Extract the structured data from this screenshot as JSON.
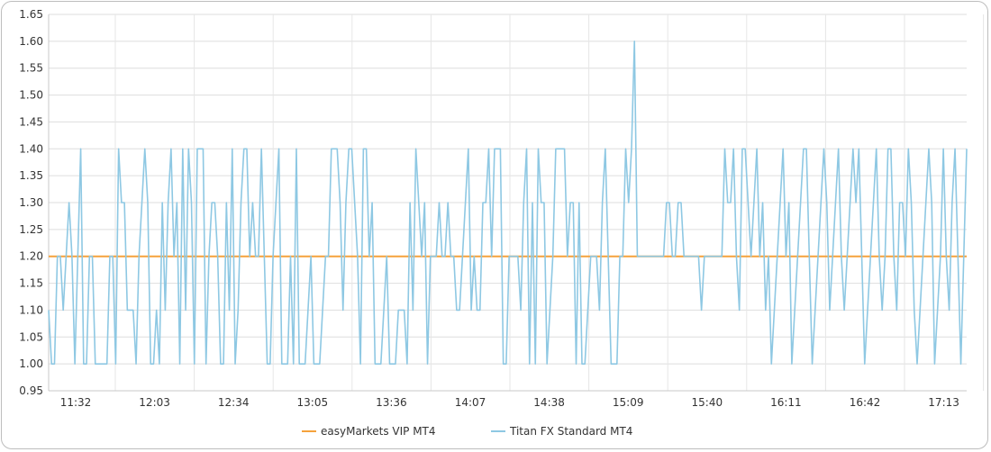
{
  "chart_data": {
    "type": "line",
    "title": "",
    "xlabel": "",
    "ylabel": "",
    "ylim": [
      0.95,
      1.65
    ],
    "y_ticks": [
      "0.95",
      "1.00",
      "1.05",
      "1.10",
      "1.15",
      "1.20",
      "1.25",
      "1.30",
      "1.35",
      "1.40",
      "1.45",
      "1.50",
      "1.55",
      "1.60",
      "1.65"
    ],
    "x_ticks": [
      "11:32",
      "12:03",
      "12:34",
      "13:05",
      "13:36",
      "14:07",
      "14:38",
      "15:09",
      "15:40",
      "16:11",
      "16:42",
      "17:13"
    ],
    "grid": true,
    "legend_position": "bottom",
    "series": [
      {
        "name": "easyMarkets VIP MT4",
        "color": "#f5a23c",
        "values": [
          1.2,
          1.2,
          1.2,
          1.2,
          1.2,
          1.2,
          1.2,
          1.2,
          1.2,
          1.2,
          1.2,
          1.2,
          1.2,
          1.2,
          1.2,
          1.2,
          1.2,
          1.2,
          1.2,
          1.2,
          1.2,
          1.2,
          1.2,
          1.2,
          1.2,
          1.2,
          1.2,
          1.2,
          1.2,
          1.2,
          1.2,
          1.2,
          1.2,
          1.2,
          1.2,
          1.2,
          1.2,
          1.2,
          1.2,
          1.2,
          1.2,
          1.2,
          1.2,
          1.2,
          1.2,
          1.2,
          1.2,
          1.2,
          1.2,
          1.2,
          1.2,
          1.2,
          1.2,
          1.2,
          1.2,
          1.2,
          1.2,
          1.2,
          1.2,
          1.2,
          1.2,
          1.2,
          1.2,
          1.2,
          1.2,
          1.2,
          1.2,
          1.2,
          1.2,
          1.2,
          1.2,
          1.2,
          1.2,
          1.2,
          1.2,
          1.2,
          1.2,
          1.2,
          1.2,
          1.2,
          1.2,
          1.2,
          1.2,
          1.2,
          1.2,
          1.2,
          1.2,
          1.2,
          1.2,
          1.2,
          1.2,
          1.2,
          1.2,
          1.2,
          1.2,
          1.2,
          1.2,
          1.2,
          1.2,
          1.2,
          1.2,
          1.2,
          1.2,
          1.2,
          1.2,
          1.2,
          1.2,
          1.2,
          1.2,
          1.2,
          1.2,
          1.2,
          1.2,
          1.2,
          1.2,
          1.2,
          1.2,
          1.2,
          1.2,
          1.2,
          1.2,
          1.2,
          1.2,
          1.2,
          1.2,
          1.2,
          1.2,
          1.2,
          1.2,
          1.2,
          1.2,
          1.2,
          1.2,
          1.2,
          1.2,
          1.2,
          1.2,
          1.2,
          1.2,
          1.2,
          1.2,
          1.2,
          1.2,
          1.2,
          1.2,
          1.2,
          1.2,
          1.2,
          1.2,
          1.2,
          1.2,
          1.2,
          1.2,
          1.2,
          1.2,
          1.2,
          1.2,
          1.2,
          1.2,
          1.2,
          1.2,
          1.2,
          1.2,
          1.2,
          1.2,
          1.2,
          1.2,
          1.2,
          1.2,
          1.2,
          1.2,
          1.2,
          1.2,
          1.2,
          1.2,
          1.2,
          1.2,
          1.2,
          1.2,
          1.2,
          1.2,
          1.2,
          1.2,
          1.2,
          1.2,
          1.2,
          1.2,
          1.2,
          1.2,
          1.2,
          1.2,
          1.2,
          1.2,
          1.2,
          1.2,
          1.2,
          1.2,
          1.2,
          1.2,
          1.2,
          1.2,
          1.2,
          1.2,
          1.2,
          1.2,
          1.2,
          1.2,
          1.2,
          1.2,
          1.2,
          1.2,
          1.2,
          1.2,
          1.2,
          1.2,
          1.2,
          1.2,
          1.2,
          1.2,
          1.2,
          1.2,
          1.2,
          1.2,
          1.2,
          1.2,
          1.2,
          1.2,
          1.2,
          1.2,
          1.2,
          1.2,
          1.2,
          1.2,
          1.2,
          1.2,
          1.2,
          1.2,
          1.2,
          1.2,
          1.2,
          1.2,
          1.2,
          1.2,
          1.2,
          1.2,
          1.2,
          1.2,
          1.2,
          1.2,
          1.2,
          1.2,
          1.2,
          1.2,
          1.2,
          1.2,
          1.2,
          1.2,
          1.2,
          1.2,
          1.2,
          1.2,
          1.2,
          1.2,
          1.2,
          1.2,
          1.2,
          1.2,
          1.2,
          1.2,
          1.2,
          1.2,
          1.2,
          1.2,
          1.2,
          1.2,
          1.2,
          1.2,
          1.2,
          1.2,
          1.2,
          1.2,
          1.2,
          1.2,
          1.2,
          1.2,
          1.2,
          1.2,
          1.2,
          1.2,
          1.2,
          1.2,
          1.2,
          1.2,
          1.2,
          1.2,
          1.2,
          1.2,
          1.2,
          1.2,
          1.2,
          1.2,
          1.2,
          1.2,
          1.2,
          1.2,
          1.2,
          1.2,
          1.2,
          1.2,
          1.2,
          1.2,
          1.2,
          1.2,
          1.2,
          1.2,
          1.2,
          1.2,
          1.2,
          1.2,
          1.2,
          1.2,
          1.2,
          1.2,
          1.2,
          1.2,
          1.2
        ]
      },
      {
        "name": "Titan FX Standard MT4",
        "color": "#8ec8e3",
        "values": [
          1.1,
          1.0,
          1.0,
          1.2,
          1.2,
          1.1,
          1.2,
          1.3,
          1.2,
          1.0,
          1.2,
          1.4,
          1.0,
          1.0,
          1.2,
          1.2,
          1.0,
          1.0,
          1.0,
          1.0,
          1.0,
          1.2,
          1.2,
          1.0,
          1.4,
          1.3,
          1.3,
          1.1,
          1.1,
          1.1,
          1.0,
          1.2,
          1.3,
          1.4,
          1.3,
          1.0,
          1.0,
          1.1,
          1.0,
          1.3,
          1.1,
          1.3,
          1.4,
          1.2,
          1.3,
          1.0,
          1.4,
          1.1,
          1.4,
          1.3,
          1.0,
          1.4,
          1.4,
          1.4,
          1.0,
          1.2,
          1.3,
          1.3,
          1.2,
          1.0,
          1.0,
          1.3,
          1.1,
          1.4,
          1.0,
          1.1,
          1.3,
          1.4,
          1.4,
          1.2,
          1.3,
          1.2,
          1.2,
          1.4,
          1.2,
          1.0,
          1.0,
          1.2,
          1.3,
          1.4,
          1.0,
          1.0,
          1.0,
          1.2,
          1.0,
          1.4,
          1.0,
          1.0,
          1.0,
          1.1,
          1.2,
          1.0,
          1.0,
          1.0,
          1.1,
          1.2,
          1.2,
          1.4,
          1.4,
          1.4,
          1.3,
          1.1,
          1.3,
          1.4,
          1.4,
          1.3,
          1.2,
          1.0,
          1.4,
          1.4,
          1.2,
          1.3,
          1.0,
          1.0,
          1.0,
          1.1,
          1.2,
          1.0,
          1.0,
          1.0,
          1.1,
          1.1,
          1.1,
          1.0,
          1.3,
          1.1,
          1.4,
          1.3,
          1.2,
          1.3,
          1.0,
          1.2,
          1.2,
          1.2,
          1.3,
          1.2,
          1.2,
          1.3,
          1.2,
          1.2,
          1.1,
          1.1,
          1.2,
          1.3,
          1.4,
          1.1,
          1.2,
          1.1,
          1.1,
          1.3,
          1.3,
          1.4,
          1.2,
          1.4,
          1.4,
          1.4,
          1.0,
          1.0,
          1.2,
          1.2,
          1.2,
          1.2,
          1.1,
          1.3,
          1.4,
          1.0,
          1.3,
          1.0,
          1.4,
          1.3,
          1.3,
          1.0,
          1.1,
          1.2,
          1.4,
          1.4,
          1.4,
          1.4,
          1.2,
          1.3,
          1.3,
          1.0,
          1.3,
          1.0,
          1.0,
          1.1,
          1.2,
          1.2,
          1.2,
          1.1,
          1.3,
          1.4,
          1.2,
          1.0,
          1.0,
          1.0,
          1.2,
          1.2,
          1.4,
          1.3,
          1.4,
          1.6,
          1.2,
          1.2,
          1.2,
          1.2,
          1.2,
          1.2,
          1.2,
          1.2,
          1.2,
          1.2,
          1.3,
          1.3,
          1.2,
          1.2,
          1.3,
          1.3,
          1.2,
          1.2,
          1.2,
          1.2,
          1.2,
          1.2,
          1.1,
          1.2,
          1.2,
          1.2,
          1.2,
          1.2,
          1.2,
          1.2,
          1.4,
          1.3,
          1.3,
          1.4,
          1.2,
          1.1,
          1.4,
          1.4,
          1.3,
          1.2,
          1.3,
          1.4,
          1.2,
          1.3,
          1.1,
          1.2,
          1.0,
          1.1,
          1.2,
          1.3,
          1.4,
          1.2,
          1.3,
          1.0,
          1.1,
          1.2,
          1.3,
          1.4,
          1.4,
          1.2,
          1.0,
          1.1,
          1.2,
          1.3,
          1.4,
          1.3,
          1.1,
          1.2,
          1.3,
          1.4,
          1.2,
          1.1,
          1.2,
          1.3,
          1.4,
          1.3,
          1.4,
          1.2,
          1.0,
          1.1,
          1.2,
          1.3,
          1.4,
          1.2,
          1.1,
          1.2,
          1.4,
          1.4,
          1.2,
          1.1,
          1.3,
          1.3,
          1.2,
          1.4,
          1.3,
          1.1,
          1.0,
          1.1,
          1.2,
          1.3,
          1.4,
          1.3,
          1.0,
          1.1,
          1.2,
          1.4,
          1.2,
          1.1,
          1.3,
          1.4,
          1.2,
          1.0,
          1.2,
          1.4
        ]
      }
    ]
  }
}
